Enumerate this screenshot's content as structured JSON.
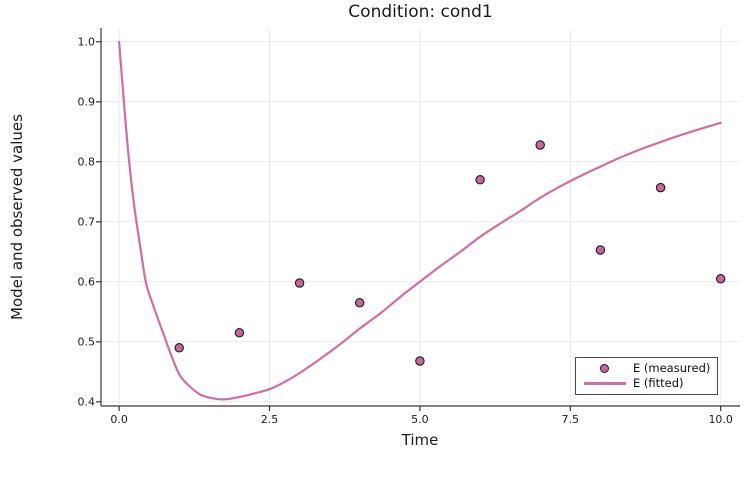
{
  "figure": {
    "background": "#ffffff"
  },
  "colors": {
    "grid": "#e9e9e9",
    "spine": "#36363a",
    "tick": "#36363a",
    "text": "#1c1c1c",
    "legend_border": "#4b4b4b"
  },
  "legend": {
    "measured_label": "E (measured)",
    "fitted_label": "E (fitted)"
  },
  "chart_data": {
    "type": "scatter",
    "title": "Condition: cond1",
    "xlabel": "Time",
    "ylabel": "Model and observed values",
    "xlim": [
      -0.3,
      10.32
    ],
    "ylim": [
      0.393,
      1.023
    ],
    "grid": true,
    "legend_position": "bottom-right",
    "xticks": {
      "values": [
        0.0,
        2.5,
        5.0,
        7.5,
        10.0
      ],
      "labels": [
        "0.0",
        "2.5",
        "5.0",
        "7.5",
        "10.0"
      ]
    },
    "yticks": {
      "values": [
        0.4,
        0.5,
        0.6,
        0.7,
        0.8,
        0.9,
        1.0
      ],
      "labels": [
        "0.4",
        "0.5",
        "0.6",
        "0.7",
        "0.8",
        "0.9",
        "1.0"
      ]
    },
    "series": [
      {
        "name": "E (measured)",
        "type": "scatter",
        "marker": "circle",
        "marker_color": "#c4679d",
        "marker_stroke": "#1b1b1b",
        "x": [
          1,
          2,
          3,
          4,
          5,
          6,
          7,
          8,
          9,
          10
        ],
        "y": [
          0.49,
          0.515,
          0.598,
          0.565,
          0.468,
          0.77,
          0.828,
          0.653,
          0.757,
          0.605
        ]
      },
      {
        "name": "E (fitted)",
        "type": "line",
        "color": "#cf6ea6",
        "x": [
          0,
          0.08,
          0.16,
          0.25,
          0.35,
          0.45,
          0.55,
          0.65,
          0.75,
          0.85,
          1.0,
          1.15,
          1.35,
          1.55,
          1.75,
          2.0,
          2.25,
          2.5,
          2.75,
          3.0,
          3.35,
          3.7,
          4.0,
          4.35,
          4.7,
          5.0,
          5.35,
          5.7,
          6.0,
          6.35,
          6.7,
          7.0,
          7.35,
          7.7,
          8.0,
          8.35,
          8.7,
          9.0,
          9.35,
          9.7,
          10.0
        ],
        "y": [
          1.0,
          0.9,
          0.808,
          0.728,
          0.66,
          0.597,
          0.566,
          0.537,
          0.51,
          0.482,
          0.446,
          0.428,
          0.412,
          0.406,
          0.404,
          0.408,
          0.414,
          0.421,
          0.433,
          0.448,
          0.472,
          0.498,
          0.522,
          0.548,
          0.577,
          0.6,
          0.627,
          0.652,
          0.675,
          0.698,
          0.72,
          0.74,
          0.76,
          0.778,
          0.792,
          0.808,
          0.822,
          0.833,
          0.845,
          0.856,
          0.865
        ]
      }
    ]
  }
}
